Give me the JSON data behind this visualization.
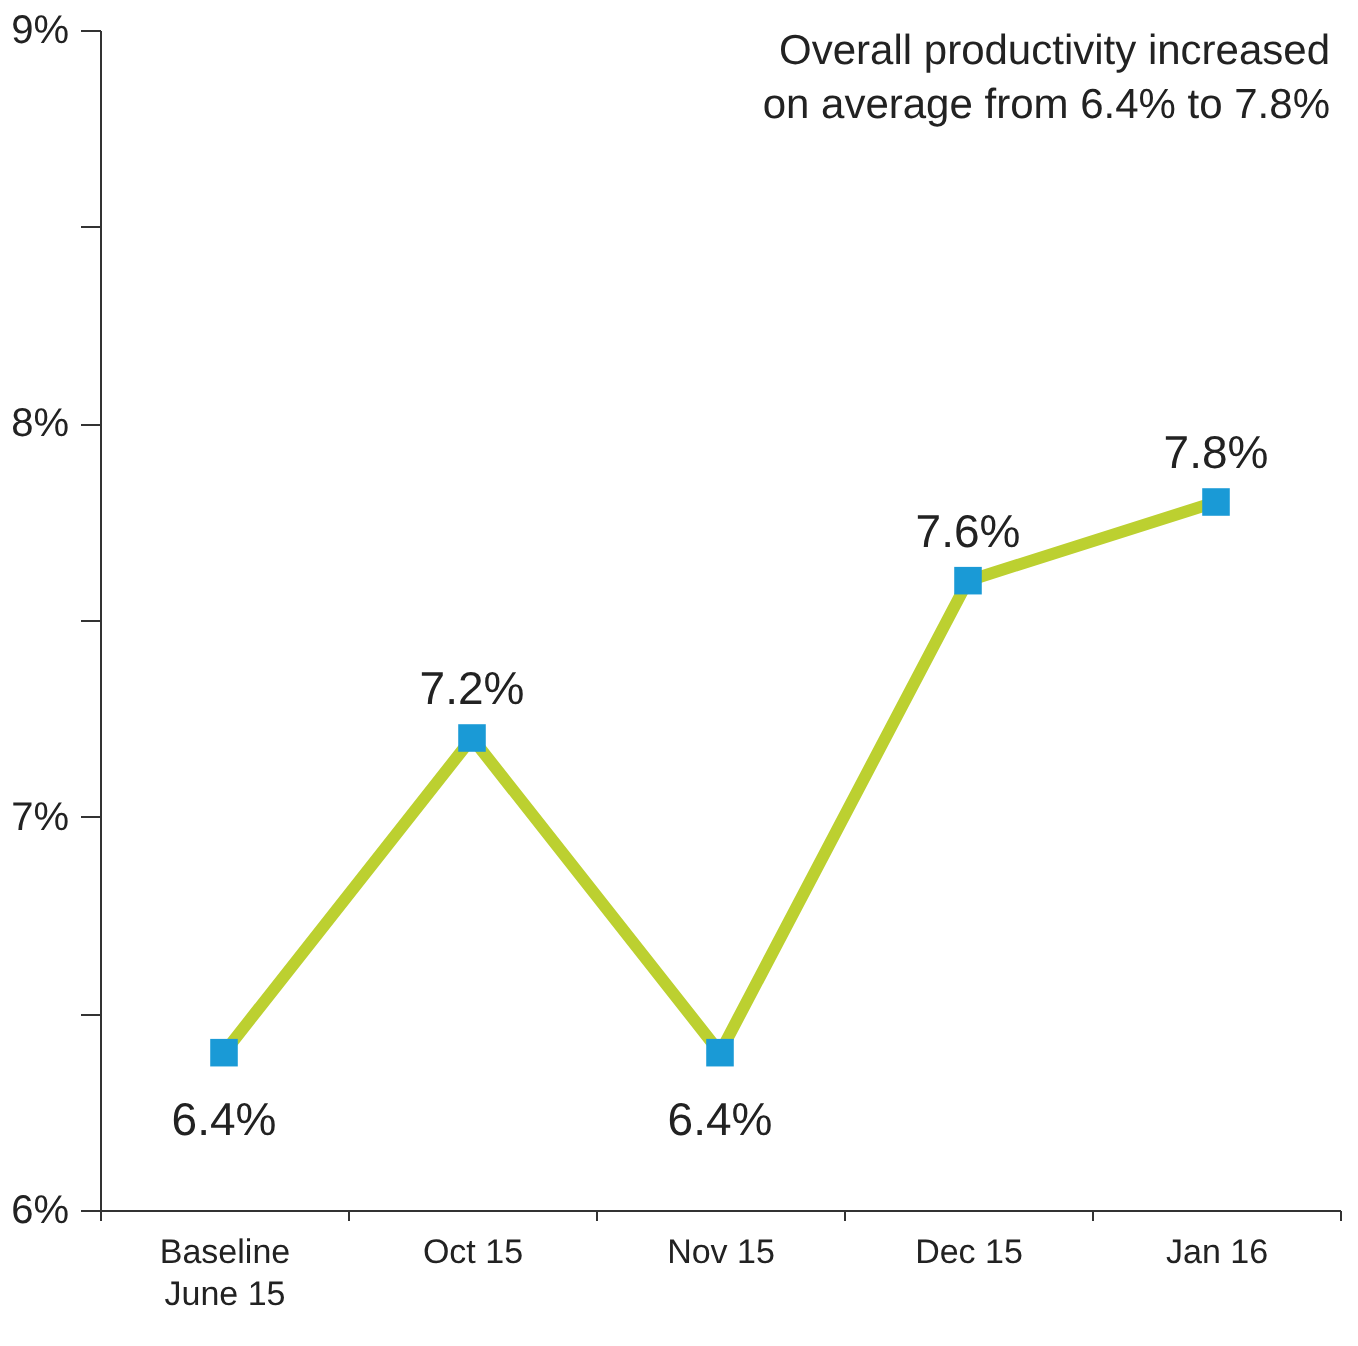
{
  "chart_data": {
    "type": "line",
    "categories": [
      "Baseline\nJune 15",
      "Oct 15",
      "Nov 15",
      "Dec 15",
      "Jan 16"
    ],
    "series": [
      {
        "color": "#bcd030",
        "values": [
          6.4,
          7.2,
          6.4,
          7.6,
          7.8
        ],
        "value_labels": [
          "6.4%",
          "7.2%",
          "6.4%",
          "7.6%",
          "7.8%"
        ]
      },
      {
        "type": "scatter",
        "marker": "square",
        "color": "#1a9ad6",
        "values": [
          6.4,
          7.2,
          6.4,
          7.6,
          7.8
        ]
      }
    ],
    "ylim": [
      6,
      9
    ],
    "yticks": [
      {
        "value": 6,
        "label": "6%"
      },
      {
        "value": 6.5,
        "label": null
      },
      {
        "value": 7,
        "label": "7%"
      },
      {
        "value": 7.5,
        "label": null
      },
      {
        "value": 8,
        "label": "8%"
      },
      {
        "value": 8.5,
        "label": null
      },
      {
        "value": 9,
        "label": "9%"
      }
    ],
    "grid": false,
    "annotations": [
      "Overall productivity increased\non average from 6.4% to 7.8%"
    ]
  }
}
